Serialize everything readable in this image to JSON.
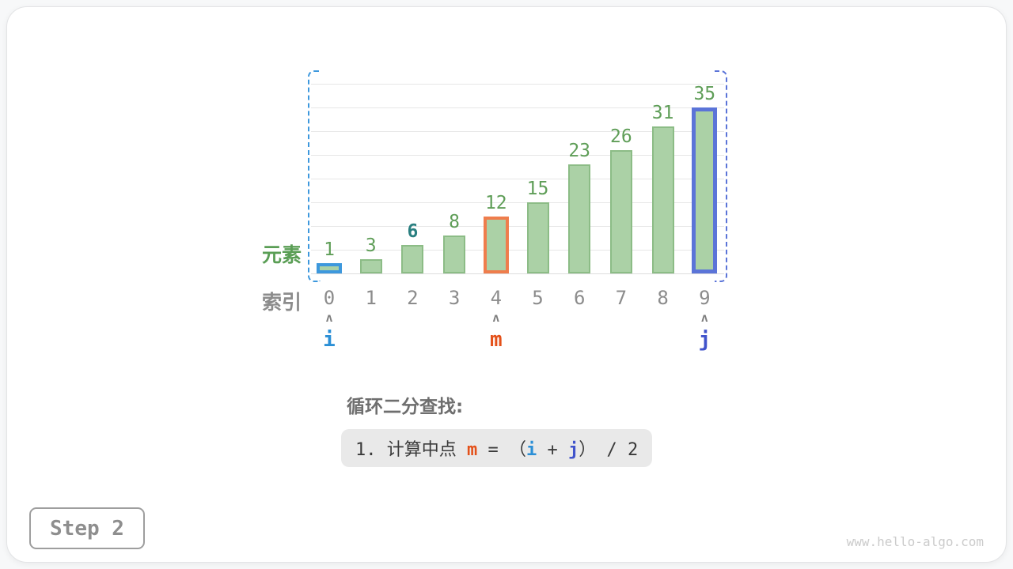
{
  "chart_data": {
    "type": "bar",
    "title": "",
    "categories": [
      "0",
      "1",
      "2",
      "3",
      "4",
      "5",
      "6",
      "7",
      "8",
      "9"
    ],
    "values": [
      1,
      3,
      6,
      8,
      12,
      15,
      23,
      26,
      31,
      35
    ],
    "ylabel": "元素",
    "xlabel": "索引",
    "ylim": [
      0,
      40
    ],
    "grid": true,
    "target": {
      "index": 2,
      "value": 6
    },
    "pointer_arrow_glyph": "ʌ",
    "pointers": [
      {
        "name": "i",
        "index": 0,
        "text_color": "#2b8fd6",
        "border_color": "#3d98dd"
      },
      {
        "name": "m",
        "index": 4,
        "text_color": "#e4511a",
        "border_color": "#ef7d4c"
      },
      {
        "name": "j",
        "index": 9,
        "text_color": "#4053cb",
        "border_color": "#5b74d8"
      }
    ],
    "range_brackets": {
      "from_index": 0,
      "to_index": 9,
      "left_color": "#3d98dd",
      "right_color": "#5b74d8"
    }
  },
  "axis_captions": {
    "element": "元素",
    "index": "索引"
  },
  "caption": {
    "heading": "循环二分查找:",
    "code_line": [
      {
        "t": "1. 计算中点 ",
        "c": "#3a3a3a",
        "bold": false
      },
      {
        "t": "m",
        "c": "#e4511a",
        "bold": true
      },
      {
        "t": " = （",
        "c": "#3a3a3a",
        "bold": false
      },
      {
        "t": "i",
        "c": "#2b8fd6",
        "bold": true
      },
      {
        "t": " + ",
        "c": "#3a3a3a",
        "bold": false
      },
      {
        "t": "j",
        "c": "#4053cb",
        "bold": true
      },
      {
        "t": "） / 2",
        "c": "#3a3a3a",
        "bold": false
      }
    ]
  },
  "footer": {
    "step_label": "Step 2",
    "watermark": "www.hello-algo.com"
  },
  "colors": {
    "bar_fill": "#abd1a6",
    "bar_border": "#8cbc86",
    "value_text": "#5f9e58",
    "target_text": "#2a7f80",
    "index_text": "#8c8c8c",
    "gridline": "#e7e7e7"
  }
}
